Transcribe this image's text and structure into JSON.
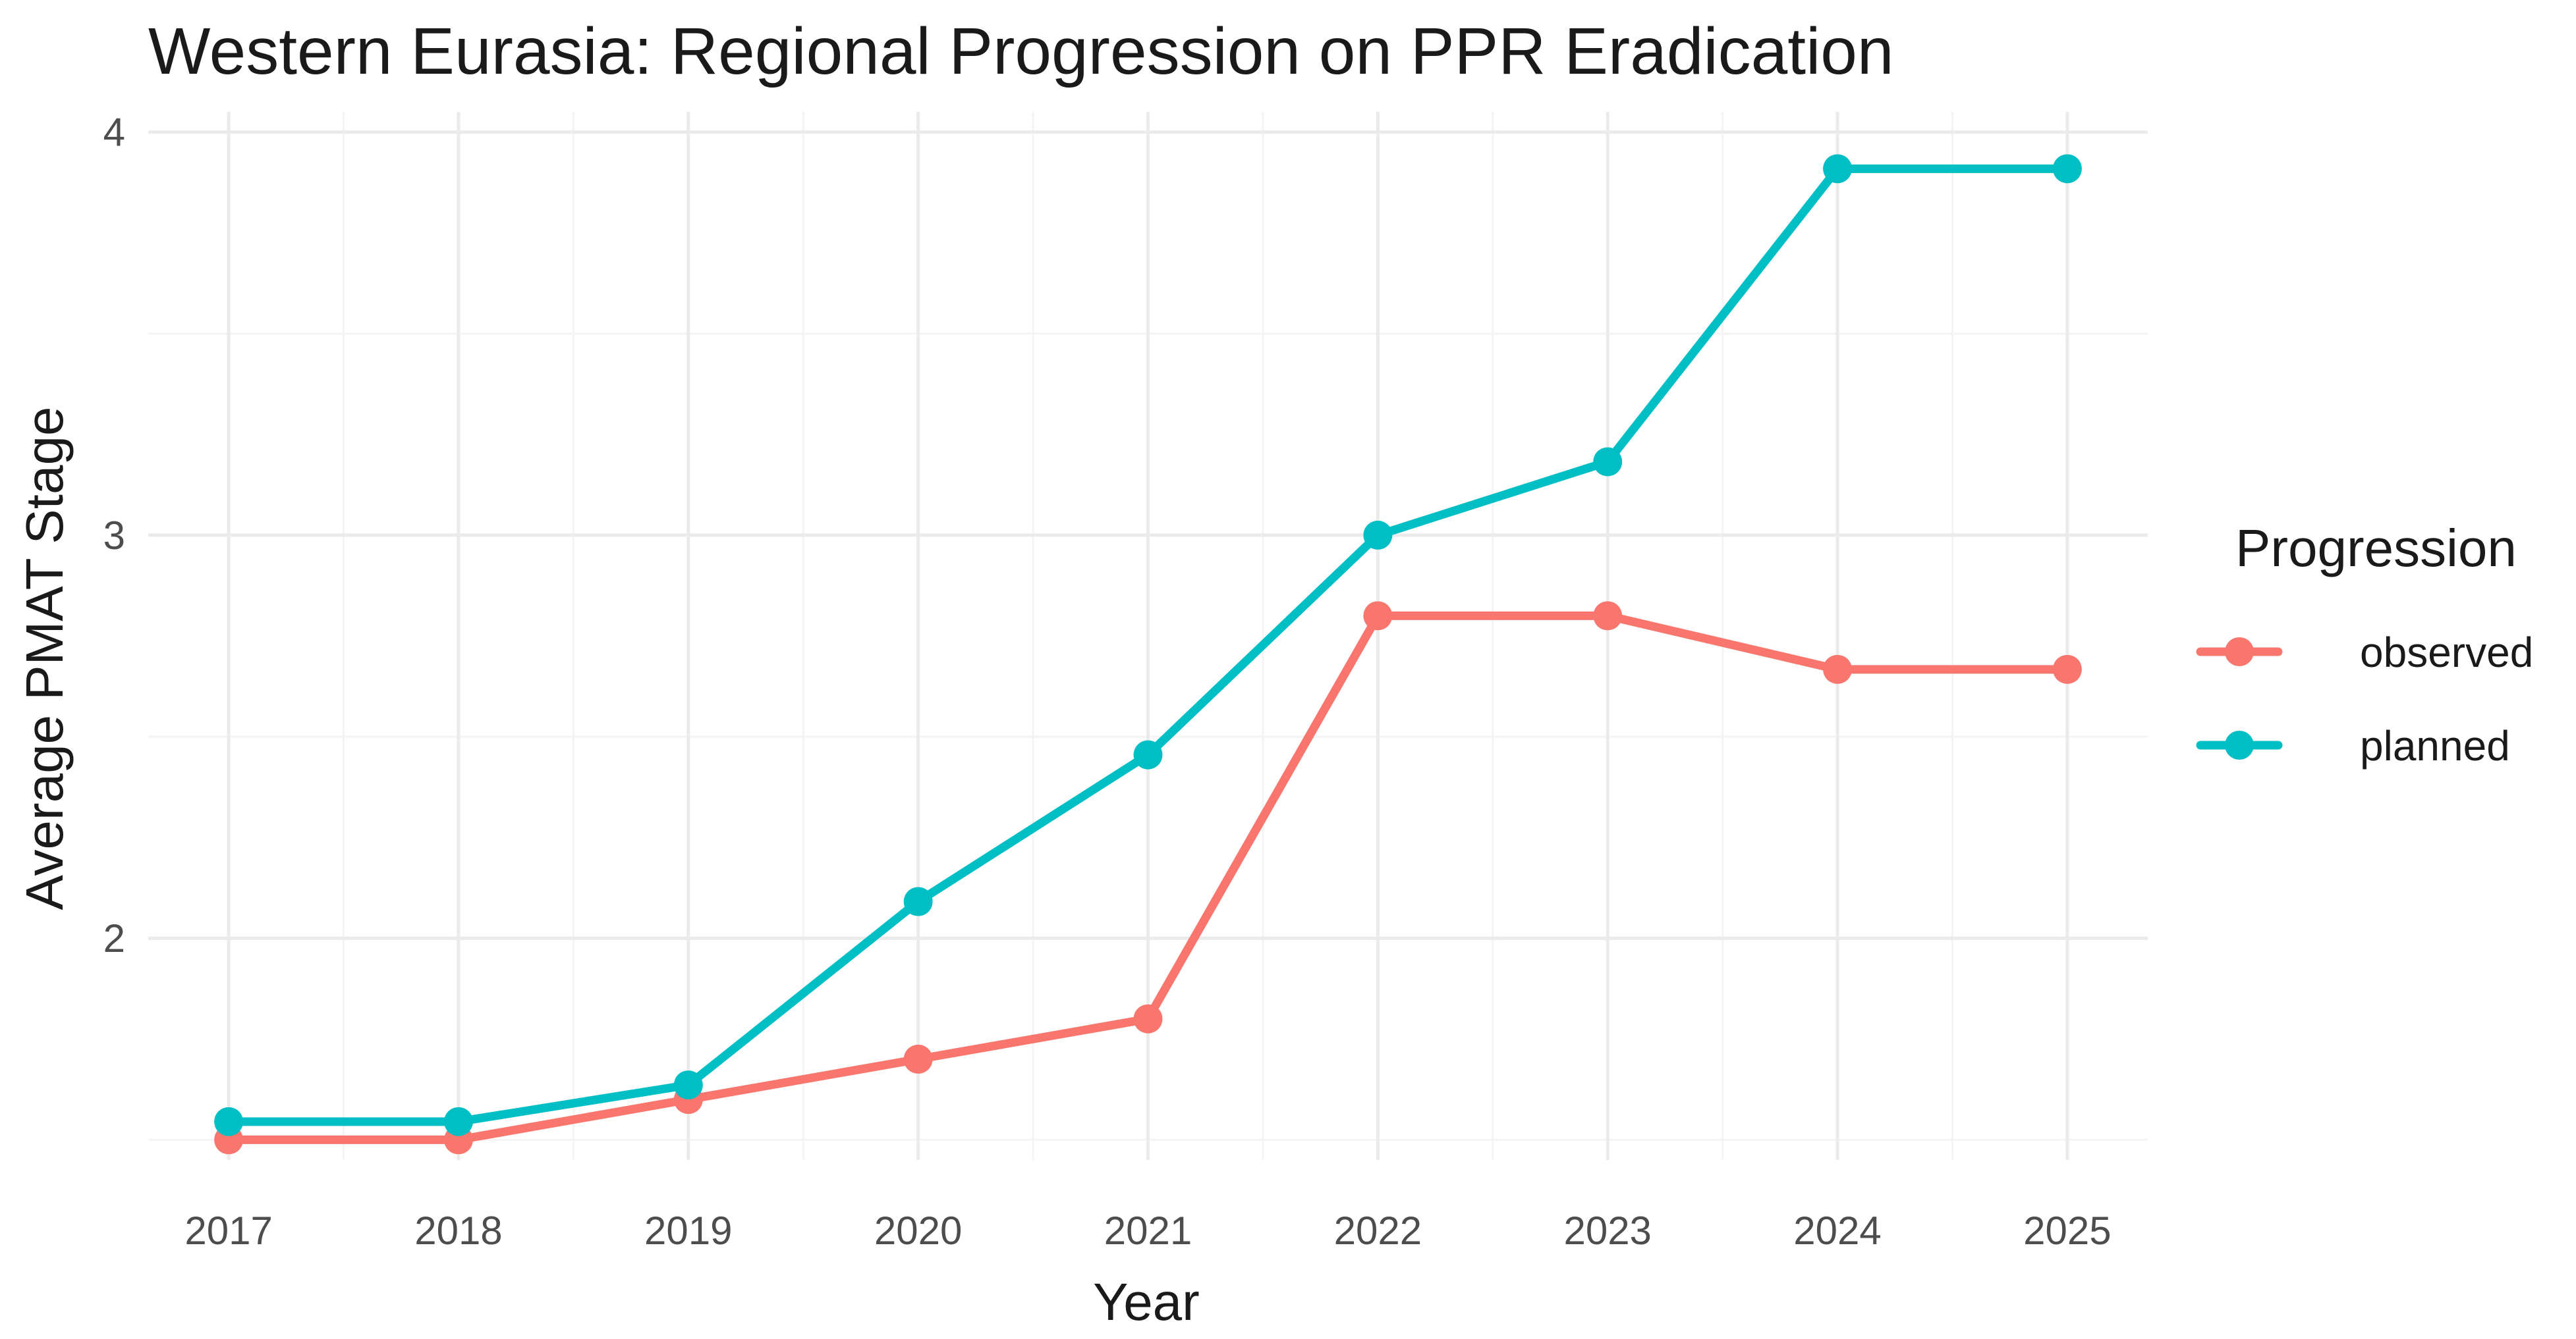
{
  "chart_data": {
    "type": "line",
    "title": "Western Eurasia: Regional Progression on PPR Eradication",
    "xlabel": "Year",
    "ylabel": "Average PMAT Stage",
    "x": [
      2017,
      2018,
      2019,
      2020,
      2021,
      2022,
      2023,
      2024,
      2025
    ],
    "x_tick_labels": [
      "2017",
      "2018",
      "2019",
      "2020",
      "2021",
      "2022",
      "2023",
      "2024",
      "2025"
    ],
    "y_ticks": [
      2,
      3,
      4
    ],
    "y_tick_labels": [
      "2",
      "3",
      "4"
    ],
    "xlim": [
      2016.65,
      2025.35
    ],
    "ylim": [
      1.45,
      4.05
    ],
    "grid": true,
    "legend": {
      "title": "Progression",
      "position": "right"
    },
    "series": [
      {
        "name": "observed",
        "color": "#F8766D",
        "values": [
          1.5,
          1.5,
          1.6,
          1.7,
          1.8,
          2.8,
          2.8,
          2.667,
          2.667
        ]
      },
      {
        "name": "planned",
        "color": "#00BFC4",
        "values": [
          1.545,
          1.545,
          1.636,
          2.091,
          2.455,
          3.0,
          3.182,
          3.909,
          3.909
        ]
      }
    ]
  }
}
